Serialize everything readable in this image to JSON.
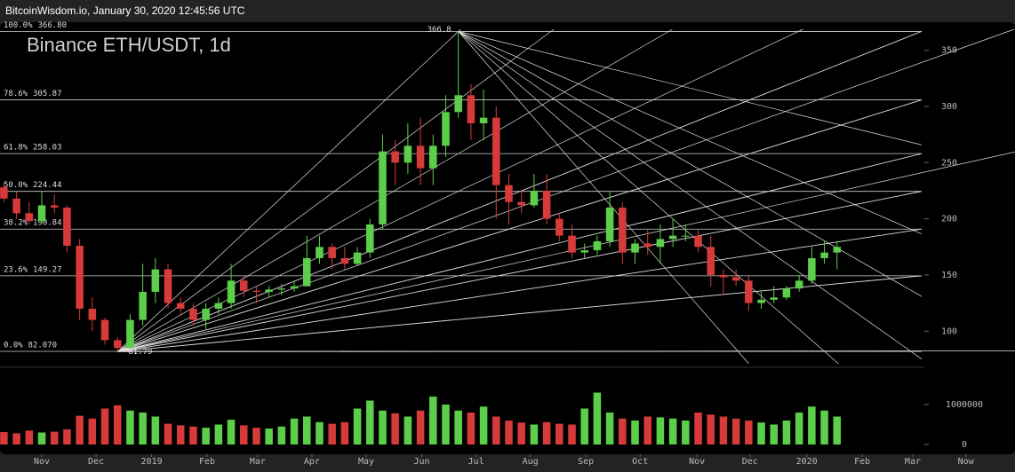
{
  "header": "BitcoinWisdom.io, January 30, 2020 12:45:56 UTC",
  "chart_data": {
    "type": "candlestick",
    "title": "Binance ETH/USDT, 1d",
    "colors": {
      "up": "#5ccf4a",
      "down": "#d63a3a",
      "grid": "#cfcfcf",
      "fan": "#e0e0e0"
    },
    "ohlc": [
      [
        228,
        232,
        215,
        218
      ],
      [
        218,
        225,
        200,
        205
      ],
      [
        205,
        215,
        195,
        198
      ],
      [
        198,
        225,
        196,
        212
      ],
      [
        212,
        222,
        205,
        210
      ],
      [
        210,
        212,
        170,
        176
      ],
      [
        176,
        182,
        110,
        120
      ],
      [
        120,
        130,
        100,
        110
      ],
      [
        110,
        112,
        88,
        92
      ],
      [
        92,
        95,
        81.79,
        85
      ],
      [
        85,
        115,
        84,
        110
      ],
      [
        110,
        160,
        105,
        135
      ],
      [
        135,
        165,
        125,
        155
      ],
      [
        155,
        160,
        120,
        125
      ],
      [
        125,
        130,
        115,
        120
      ],
      [
        120,
        125,
        105,
        110
      ],
      [
        110,
        125,
        102,
        120
      ],
      [
        120,
        130,
        115,
        125
      ],
      [
        125,
        160,
        120,
        145
      ],
      [
        145,
        150,
        130,
        136
      ],
      [
        136,
        140,
        125,
        135
      ],
      [
        135,
        140,
        130,
        137
      ],
      [
        137,
        142,
        132,
        138
      ],
      [
        138,
        145,
        135,
        140
      ],
      [
        140,
        185,
        140,
        165
      ],
      [
        165,
        185,
        160,
        175
      ],
      [
        175,
        178,
        155,
        165
      ],
      [
        165,
        175,
        155,
        160
      ],
      [
        160,
        175,
        158,
        170
      ],
      [
        170,
        200,
        165,
        195
      ],
      [
        195,
        275,
        190,
        260
      ],
      [
        260,
        270,
        230,
        250
      ],
      [
        250,
        285,
        240,
        265
      ],
      [
        265,
        290,
        230,
        245
      ],
      [
        245,
        275,
        230,
        265
      ],
      [
        265,
        310,
        255,
        295
      ],
      [
        295,
        366.8,
        290,
        310
      ],
      [
        310,
        320,
        270,
        285
      ],
      [
        285,
        315,
        270,
        290
      ],
      [
        290,
        300,
        200,
        230
      ],
      [
        230,
        240,
        195,
        215
      ],
      [
        215,
        225,
        205,
        212
      ],
      [
        212,
        240,
        210,
        225
      ],
      [
        225,
        240,
        195,
        200
      ],
      [
        200,
        205,
        180,
        185
      ],
      [
        185,
        195,
        165,
        170
      ],
      [
        170,
        178,
        165,
        172
      ],
      [
        172,
        185,
        168,
        180
      ],
      [
        180,
        225,
        175,
        210
      ],
      [
        210,
        215,
        160,
        170
      ],
      [
        170,
        182,
        160,
        178
      ],
      [
        178,
        190,
        168,
        175
      ],
      [
        175,
        195,
        160,
        182
      ],
      [
        182,
        200,
        175,
        185
      ],
      [
        185,
        195,
        180,
        185
      ],
      [
        185,
        190,
        170,
        175
      ],
      [
        175,
        185,
        140,
        150
      ],
      [
        150,
        155,
        132,
        148
      ],
      [
        148,
        155,
        140,
        145
      ],
      [
        145,
        150,
        118,
        125
      ],
      [
        125,
        135,
        120,
        128
      ],
      [
        128,
        140,
        125,
        130
      ],
      [
        130,
        140,
        128,
        138
      ],
      [
        138,
        150,
        135,
        145
      ],
      [
        145,
        175,
        142,
        165
      ],
      [
        165,
        180,
        160,
        170
      ],
      [
        170,
        180,
        155,
        175
      ]
    ],
    "volume": [
      310000,
      280000,
      350000,
      300000,
      320000,
      380000,
      720000,
      650000,
      900000,
      980000,
      850000,
      800000,
      700000,
      520000,
      480000,
      450000,
      420000,
      500000,
      620000,
      480000,
      420000,
      400000,
      450000,
      650000,
      700000,
      560000,
      520000,
      560000,
      900000,
      1100000,
      850000,
      780000,
      700000,
      850000,
      1200000,
      1000000,
      850000,
      800000,
      950000,
      700000,
      600000,
      550000,
      500000,
      560000,
      520000,
      500000,
      900000,
      1300000,
      800000,
      650000,
      600000,
      700000,
      680000,
      650000,
      600000,
      800000,
      750000,
      700000,
      650000,
      600000,
      550000,
      500000,
      600000,
      800000,
      950000,
      850000,
      700000
    ],
    "xlim": [
      -0.31,
      80.1
    ],
    "xticks": [
      {
        "value": 3,
        "label": "Nov"
      },
      {
        "value": 7.3,
        "label": "Dec"
      },
      {
        "value": 11.7,
        "label": "2019"
      },
      {
        "value": 16.1,
        "label": "Feb"
      },
      {
        "value": 20.1,
        "label": "Mar"
      },
      {
        "value": 24.4,
        "label": "Apr"
      },
      {
        "value": 28.7,
        "label": "May"
      },
      {
        "value": 33.1,
        "label": "Jun"
      },
      {
        "value": 37.4,
        "label": "Jul"
      },
      {
        "value": 41.7,
        "label": "Aug"
      },
      {
        "value": 46.1,
        "label": "Sep"
      },
      {
        "value": 50.4,
        "label": "Oct"
      },
      {
        "value": 54.9,
        "label": "Nov"
      },
      {
        "value": 59.1,
        "label": "Dec"
      },
      {
        "value": 63.6,
        "label": "2020"
      },
      {
        "value": 68,
        "label": "Feb"
      },
      {
        "value": 72,
        "label": "Mar"
      },
      {
        "value": 76.2,
        "label": "Now"
      }
    ],
    "ylim": [
      71,
      375
    ],
    "yticks": [
      100,
      150,
      200,
      250,
      300,
      350
    ],
    "y2lim": [
      -200000,
      1800000
    ],
    "y2ticks": [
      0,
      1000000
    ],
    "fib_levels": [
      {
        "ratio": "0.0%",
        "value": 82.07,
        "value_label": "82.070"
      },
      {
        "ratio": "23.6%",
        "value": 149.27
      },
      {
        "ratio": "38.2%",
        "value": 190.84
      },
      {
        "ratio": "50.0%",
        "value": 224.44
      },
      {
        "ratio": "61.8%",
        "value": 258.03
      },
      {
        "ratio": "78.6%",
        "value": 305.87
      },
      {
        "ratio": "100.0%",
        "value": 366.8,
        "value_label": "366.80"
      }
    ],
    "extremes": {
      "high": 366.8,
      "low": 81.79
    }
  }
}
